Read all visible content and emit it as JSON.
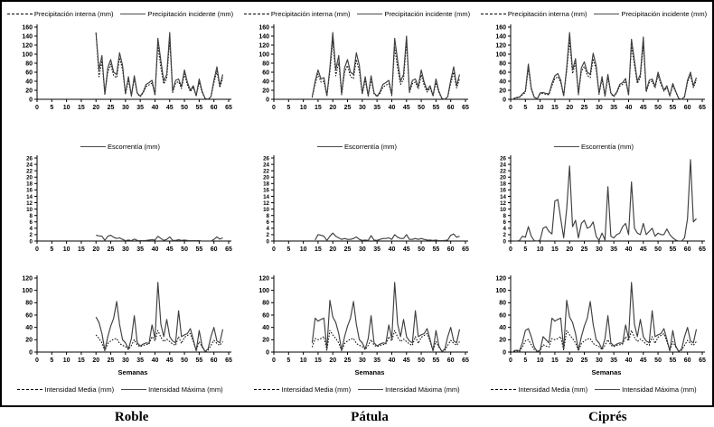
{
  "figure": {
    "species_labels": [
      "Roble",
      "Pátula",
      "Ciprés"
    ],
    "x_axis_label": "Semanas"
  },
  "colors": {
    "dotted": "#000000",
    "solid": "#3f3f3f",
    "axis": "#000000",
    "background": "#ffffff"
  },
  "chart_data": [
    {
      "id": "roble-precipitacion",
      "type": "line",
      "row": 1,
      "column": "Roble",
      "xlim": [
        0,
        65
      ],
      "ylim": [
        0,
        160
      ],
      "xtick_step": 5,
      "ytick_step": 20,
      "x_label": "",
      "legend_position": "top",
      "grid": false,
      "series": [
        {
          "name": "Precipitación interna (mm)",
          "style": "dotted",
          "start_week": 20,
          "values": [
            147,
            50,
            85,
            10,
            60,
            78,
            52,
            48,
            92,
            66,
            11,
            43,
            7,
            45,
            12,
            6,
            14,
            28,
            32,
            36,
            9,
            120,
            70,
            34,
            46,
            130,
            15,
            36,
            39,
            24,
            56,
            32,
            17,
            26,
            7,
            38,
            15,
            2,
            0,
            5,
            36,
            62,
            26,
            47
          ]
        },
        {
          "name": "Precipitación incidente (mm)",
          "style": "solid",
          "start_week": 20,
          "values": [
            148,
            65,
            97,
            12,
            70,
            88,
            60,
            55,
            103,
            75,
            13,
            50,
            8,
            52,
            14,
            7,
            16,
            33,
            37,
            42,
            10,
            135,
            85,
            40,
            55,
            148,
            18,
            42,
            45,
            28,
            65,
            38,
            20,
            30,
            8,
            45,
            18,
            2,
            0,
            6,
            42,
            72,
            30,
            55
          ]
        }
      ]
    },
    {
      "id": "patula-precipitacion",
      "type": "line",
      "row": 1,
      "column": "Pátula",
      "xlim": [
        0,
        65
      ],
      "ylim": [
        0,
        160
      ],
      "xtick_step": 5,
      "ytick_step": 20,
      "x_label": "",
      "legend_position": "top",
      "grid": false,
      "series": [
        {
          "name": "Precipitación interna (mm)",
          "style": "dotted",
          "start_week": 13,
          "values": [
            4,
            34,
            56,
            38,
            40,
            7,
            60,
            130,
            52,
            82,
            10,
            60,
            75,
            50,
            46,
            88,
            62,
            11,
            42,
            7,
            44,
            12,
            6,
            13,
            27,
            31,
            35,
            8,
            115,
            68,
            33,
            44,
            125,
            15,
            35,
            38,
            23,
            54,
            31,
            16,
            25,
            7,
            37,
            15,
            2,
            0,
            5,
            35,
            60,
            25,
            46
          ]
        },
        {
          "name": "Precipitación incidente (mm)",
          "style": "solid",
          "start_week": 13,
          "values": [
            5,
            40,
            65,
            45,
            48,
            8,
            70,
            148,
            65,
            97,
            12,
            70,
            88,
            60,
            55,
            103,
            75,
            13,
            50,
            8,
            52,
            14,
            7,
            16,
            33,
            37,
            42,
            10,
            135,
            85,
            40,
            55,
            140,
            18,
            42,
            45,
            28,
            65,
            38,
            20,
            30,
            8,
            45,
            18,
            2,
            0,
            6,
            42,
            72,
            30,
            55
          ]
        }
      ]
    },
    {
      "id": "cipres-precipitacion",
      "type": "line",
      "row": 1,
      "column": "Ciprés",
      "xlim": [
        0,
        65
      ],
      "ylim": [
        0,
        160
      ],
      "xtick_step": 5,
      "ytick_step": 20,
      "x_label": "",
      "legend_position": "top",
      "grid": false,
      "series": [
        {
          "name": "Precipitación interna (mm)",
          "style": "dotted",
          "start_week": 1,
          "values": [
            1,
            3,
            4,
            10,
            15,
            68,
            22,
            4,
            1,
            12,
            13,
            11,
            10,
            30,
            46,
            50,
            37,
            7,
            62,
            130,
            57,
            80,
            10,
            62,
            73,
            53,
            48,
            90,
            66,
            11,
            44,
            7,
            48,
            12,
            6,
            14,
            29,
            33,
            40,
            9,
            117,
            75,
            35,
            48,
            121,
            16,
            37,
            40,
            25,
            53,
            33,
            18,
            26,
            7,
            31,
            16,
            2,
            0,
            5,
            37,
            53,
            26,
            42
          ]
        },
        {
          "name": "Precipitación incidente (mm)",
          "style": "solid",
          "start_week": 1,
          "values": [
            2,
            4,
            5,
            12,
            18,
            78,
            25,
            5,
            1,
            14,
            15,
            13,
            12,
            35,
            52,
            57,
            42,
            8,
            70,
            148,
            65,
            90,
            12,
            70,
            83,
            60,
            55,
            102,
            75,
            13,
            50,
            8,
            55,
            14,
            7,
            16,
            33,
            37,
            46,
            10,
            133,
            85,
            40,
            55,
            138,
            18,
            42,
            45,
            28,
            60,
            38,
            20,
            30,
            8,
            35,
            18,
            2,
            0,
            6,
            42,
            60,
            30,
            48
          ]
        }
      ]
    },
    {
      "id": "roble-escorrentia",
      "type": "line",
      "row": 2,
      "column": "Roble",
      "xlim": [
        0,
        65
      ],
      "ylim": [
        0,
        26
      ],
      "xtick_step": 5,
      "ytick_step": 2,
      "x_label": "",
      "legend_position": "top",
      "grid": false,
      "series": [
        {
          "name": "Escorrentía (mm)",
          "style": "solid",
          "start_week": 20,
          "values": [
            1.8,
            1.6,
            1.5,
            0.2,
            1.5,
            1.8,
            1.2,
            0.8,
            1.0,
            0.5,
            0.1,
            0.3,
            0.1,
            0.6,
            0.2,
            0.1,
            0.1,
            0.2,
            0.3,
            0.4,
            0.3,
            1.5,
            0.8,
            0.2,
            0.5,
            1.3,
            0.2,
            0.2,
            0.4,
            0.2,
            0.3,
            0.2,
            0.1,
            0.1,
            0.1,
            0.1,
            0,
            0,
            0,
            0,
            0.5,
            1.3,
            0.6,
            1.0
          ]
        }
      ]
    },
    {
      "id": "patula-escorrentia",
      "type": "line",
      "row": 2,
      "column": "Pátula",
      "xlim": [
        0,
        65
      ],
      "ylim": [
        0,
        26
      ],
      "xtick_step": 5,
      "ytick_step": 2,
      "x_label": "",
      "legend_position": "top",
      "grid": false,
      "series": [
        {
          "name": "Escorrentía (mm)",
          "style": "solid",
          "start_week": 14,
          "values": [
            0.3,
            2.0,
            1.8,
            1.5,
            0.2,
            1.5,
            2.5,
            1.5,
            1.0,
            0.5,
            0.8,
            0.5,
            0.5,
            0.8,
            1.3,
            0.5,
            0.2,
            0.3,
            0.2,
            1.7,
            0.3,
            0.2,
            0.5,
            0.8,
            0.8,
            1.0,
            0.5,
            2.0,
            1.2,
            0.8,
            0.8,
            2.0,
            0.5,
            0.5,
            0.8,
            0.5,
            0.8,
            0.5,
            0.3,
            0.3,
            0.2,
            0.3,
            0.1,
            0.1,
            0.2,
            0.3,
            1.8,
            2.2,
            1.2,
            1.5
          ]
        }
      ]
    },
    {
      "id": "cipres-escorrentia",
      "type": "line",
      "row": 2,
      "column": "Ciprés",
      "xlim": [
        0,
        65
      ],
      "ylim": [
        0,
        26
      ],
      "xtick_step": 5,
      "ytick_step": 2,
      "x_label": "",
      "legend_position": "top",
      "grid": false,
      "series": [
        {
          "name": "Escorrentía (mm)",
          "style": "solid",
          "start_week": 1,
          "values": [
            0,
            0,
            0.2,
            1.5,
            1.2,
            4.5,
            1.5,
            0.1,
            0,
            0.3,
            4.0,
            4.5,
            3.0,
            2.2,
            12.5,
            13.0,
            7.0,
            1.0,
            10.0,
            23.5,
            4.5,
            6.5,
            1.0,
            5.5,
            6.5,
            4.0,
            4.5,
            6.0,
            1.5,
            0.2,
            2.5,
            0.3,
            17.0,
            1.5,
            1.0,
            2.0,
            2.5,
            4.5,
            5.5,
            2.0,
            18.5,
            4.0,
            2.5,
            2.0,
            5.5,
            2.0,
            3.0,
            4.0,
            1.5,
            2.5,
            2.0,
            2.0,
            3.8,
            2.0,
            1.0,
            0.3,
            0,
            0,
            1.0,
            7.0,
            25.5,
            6.0,
            7.0
          ]
        }
      ]
    },
    {
      "id": "roble-intensidad",
      "type": "line",
      "row": 3,
      "column": "Roble",
      "xlim": [
        0,
        65
      ],
      "ylim": [
        0,
        120
      ],
      "xtick_step": 5,
      "ytick_step": 20,
      "x_label": "Semanas",
      "legend_position": "bottom",
      "grid": false,
      "series": [
        {
          "name": "Intensidad Media (mm)",
          "style": "dotted",
          "start_week": 20,
          "values": [
            28,
            22,
            15,
            2,
            14,
            18,
            21,
            22,
            14,
            11,
            9,
            4,
            11,
            20,
            11,
            9,
            11,
            12,
            13,
            25,
            18,
            35,
            24,
            17,
            21,
            17,
            13,
            11,
            25,
            14,
            24,
            27,
            30,
            17,
            2,
            17,
            8,
            1,
            3,
            11,
            19,
            14,
            11,
            17
          ]
        },
        {
          "name": "Intensidad Máxima (mm)",
          "style": "solid",
          "start_week": 20,
          "values": [
            57,
            48,
            30,
            3,
            25,
            42,
            55,
            82,
            45,
            20,
            15,
            5,
            22,
            59,
            15,
            10,
            13,
            15,
            14,
            44,
            22,
            113,
            45,
            25,
            53,
            25,
            18,
            15,
            67,
            25,
            28,
            30,
            38,
            20,
            2,
            35,
            10,
            1,
            5,
            25,
            40,
            18,
            15,
            37
          ]
        }
      ]
    },
    {
      "id": "patula-intensidad",
      "type": "line",
      "row": 3,
      "column": "Pátula",
      "xlim": [
        0,
        65
      ],
      "ylim": [
        0,
        120
      ],
      "xtick_step": 5,
      "ytick_step": 20,
      "x_label": "Semanas",
      "legend_position": "bottom",
      "grid": false,
      "series": [
        {
          "name": "Intensidad Media (mm)",
          "style": "dotted",
          "start_week": 13,
          "values": [
            8,
            22,
            20,
            22,
            25,
            3,
            35,
            28,
            22,
            15,
            2,
            14,
            18,
            21,
            22,
            14,
            11,
            9,
            4,
            11,
            20,
            11,
            9,
            11,
            12,
            13,
            25,
            18,
            35,
            24,
            17,
            21,
            17,
            13,
            11,
            25,
            14,
            24,
            27,
            30,
            17,
            2,
            17,
            8,
            1,
            3,
            11,
            19,
            14,
            11,
            17
          ]
        },
        {
          "name": "Intensidad Máxima (mm)",
          "style": "solid",
          "start_week": 13,
          "values": [
            15,
            55,
            50,
            53,
            55,
            5,
            84,
            57,
            48,
            30,
            3,
            25,
            42,
            55,
            82,
            45,
            20,
            15,
            5,
            22,
            59,
            15,
            10,
            13,
            15,
            14,
            44,
            22,
            113,
            45,
            25,
            53,
            25,
            18,
            15,
            67,
            25,
            28,
            30,
            38,
            20,
            2,
            35,
            10,
            1,
            5,
            25,
            40,
            18,
            15,
            37
          ]
        }
      ]
    },
    {
      "id": "cipres-intensidad",
      "type": "line",
      "row": 3,
      "column": "Ciprés",
      "xlim": [
        0,
        65
      ],
      "ylim": [
        0,
        120
      ],
      "xtick_step": 5,
      "ytick_step": 20,
      "x_label": "Semanas",
      "legend_position": "bottom",
      "grid": false,
      "series": [
        {
          "name": "Intensidad Media (mm)",
          "style": "dotted",
          "start_week": 1,
          "values": [
            1,
            2,
            1,
            8,
            18,
            20,
            12,
            4,
            1,
            2,
            12,
            10,
            8,
            22,
            20,
            22,
            25,
            3,
            35,
            28,
            22,
            15,
            2,
            14,
            18,
            21,
            22,
            14,
            11,
            9,
            4,
            11,
            20,
            11,
            9,
            11,
            12,
            13,
            25,
            18,
            35,
            24,
            17,
            21,
            17,
            13,
            11,
            25,
            14,
            24,
            27,
            30,
            17,
            2,
            17,
            8,
            1,
            3,
            11,
            19,
            14,
            11,
            17
          ]
        },
        {
          "name": "Intensidad Máxima (mm)",
          "style": "solid",
          "start_week": 1,
          "values": [
            2,
            3,
            2,
            15,
            35,
            38,
            25,
            8,
            1,
            3,
            25,
            20,
            15,
            55,
            50,
            53,
            55,
            5,
            84,
            57,
            48,
            30,
            3,
            25,
            42,
            55,
            82,
            45,
            20,
            15,
            5,
            22,
            59,
            15,
            10,
            13,
            15,
            14,
            44,
            22,
            113,
            45,
            25,
            53,
            25,
            18,
            15,
            67,
            25,
            28,
            30,
            38,
            20,
            2,
            35,
            10,
            1,
            5,
            25,
            40,
            18,
            15,
            37
          ]
        }
      ]
    }
  ]
}
